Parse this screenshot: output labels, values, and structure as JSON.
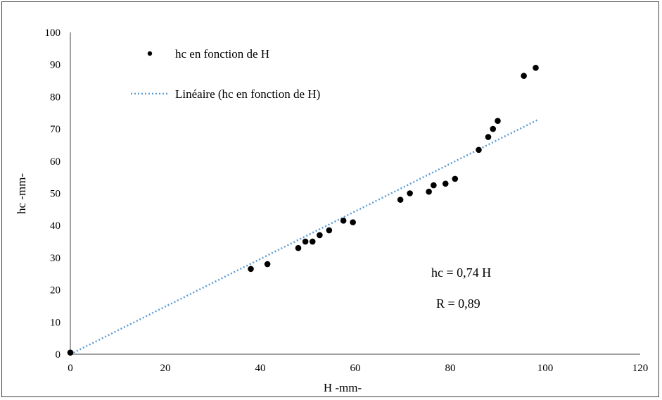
{
  "chart_data": {
    "type": "scatter",
    "title": "",
    "xlabel": "H -mm-",
    "ylabel": "hc -mm-",
    "xlim": [
      0,
      120
    ],
    "ylim": [
      0,
      100
    ],
    "x_ticks": [
      0,
      20,
      40,
      60,
      80,
      100,
      120
    ],
    "y_ticks": [
      0,
      10,
      20,
      30,
      40,
      50,
      60,
      70,
      80,
      90,
      100
    ],
    "grid": false,
    "legend_position": "top-left",
    "series": [
      {
        "name": "hc en fonction de H",
        "marker_color": "#000000",
        "points": [
          {
            "x": 0,
            "y": 0.5
          },
          {
            "x": 38,
            "y": 26.5
          },
          {
            "x": 41.5,
            "y": 28
          },
          {
            "x": 48,
            "y": 33
          },
          {
            "x": 49.5,
            "y": 35
          },
          {
            "x": 51,
            "y": 35
          },
          {
            "x": 52.5,
            "y": 37
          },
          {
            "x": 54.5,
            "y": 38.5
          },
          {
            "x": 57.5,
            "y": 41.5
          },
          {
            "x": 59.5,
            "y": 41
          },
          {
            "x": 69.5,
            "y": 48
          },
          {
            "x": 71.5,
            "y": 50
          },
          {
            "x": 75.5,
            "y": 50.5
          },
          {
            "x": 76.5,
            "y": 52.5
          },
          {
            "x": 79,
            "y": 53
          },
          {
            "x": 81,
            "y": 54.5
          },
          {
            "x": 86,
            "y": 63.5
          },
          {
            "x": 88,
            "y": 67.5
          },
          {
            "x": 89,
            "y": 70
          },
          {
            "x": 90,
            "y": 72.5
          },
          {
            "x": 95.5,
            "y": 86.5
          },
          {
            "x": 98,
            "y": 89
          }
        ]
      }
    ],
    "trendline": {
      "name": "Linéaire (hc en fonction de H)",
      "slope": 0.74,
      "intercept": 0,
      "x_range": [
        0,
        98.5
      ],
      "color": "#5B9BD5",
      "style": "dotted"
    },
    "annotations": [
      "hc = 0,74 H",
      "R = 0,89"
    ]
  }
}
